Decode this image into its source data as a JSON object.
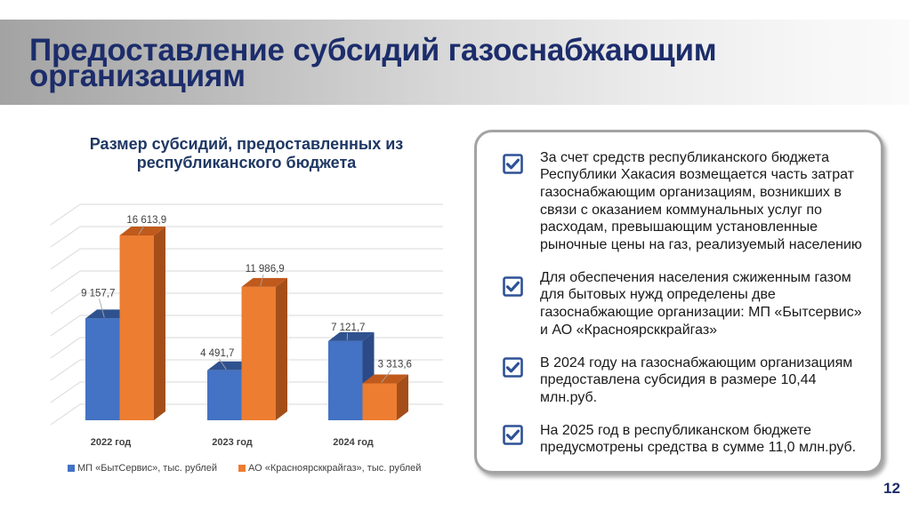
{
  "header": {
    "title_line1": "Предоставление субсидий газоснабжающим",
    "title_line2": "организациям"
  },
  "chart_data": {
    "type": "bar",
    "style": "3d-clustered-column",
    "title": "Размер субсидий, предоставленных из республиканского бюджета",
    "title_lines": [
      "Размер субсидий, предоставленных из",
      "республиканского бюджета"
    ],
    "categories": [
      "2022 год",
      "2023 год",
      "2024 год"
    ],
    "series": [
      {
        "name": "МП «БытСервис», тыс. рублей",
        "values": [
          9157.7,
          4491.7,
          7121.7
        ],
        "value_labels": [
          "9 157,7",
          "4 491,7",
          "7 121,7"
        ],
        "color": "#4472c4"
      },
      {
        "name": "АО «Красноярсккрайгаз», тыс. рублей",
        "values": [
          16613.9,
          11986.9,
          3313.6
        ],
        "value_labels": [
          "16 613,9",
          "11 986,9",
          "3 313,6"
        ],
        "color": "#ed7d31"
      }
    ],
    "xlabel": "",
    "ylabel": "",
    "ylim": [
      0,
      20000
    ],
    "grid": true,
    "legend_position": "bottom"
  },
  "panel": {
    "items": [
      {
        "lines": [
          "За счет средств республиканского бюджета",
          "Республики Хакасия возмещается часть затрат",
          "газоснабжающим организациям, возникших в",
          "связи с оказанием коммунальных услуг по",
          "расходам, превышающим установленные",
          "рыночные цены на газ, реализуемый населению"
        ]
      },
      {
        "lines": [
          "Для обеспечения населения сжиженным газом",
          "для бытовых нужд определены две",
          "газоснабжающие организации: МП «Бытсервис»",
          "и АО «Красноярсккрайгаз»"
        ]
      },
      {
        "lines": [
          "В 2024 году на газоснабжающим организациям",
          "предоставлена субсидия в размере 10,44",
          "млн.руб."
        ]
      },
      {
        "lines": [
          "На 2025 год в республиканском бюджете",
          "предусмотрены средства в сумме 11,0 млн.руб."
        ]
      }
    ]
  },
  "page_number": "12",
  "colors": {
    "title": "#1c2d6b",
    "chart_title": "#1f3864",
    "checkbox": "#2f5196",
    "gridline": "#d9d9d9"
  }
}
